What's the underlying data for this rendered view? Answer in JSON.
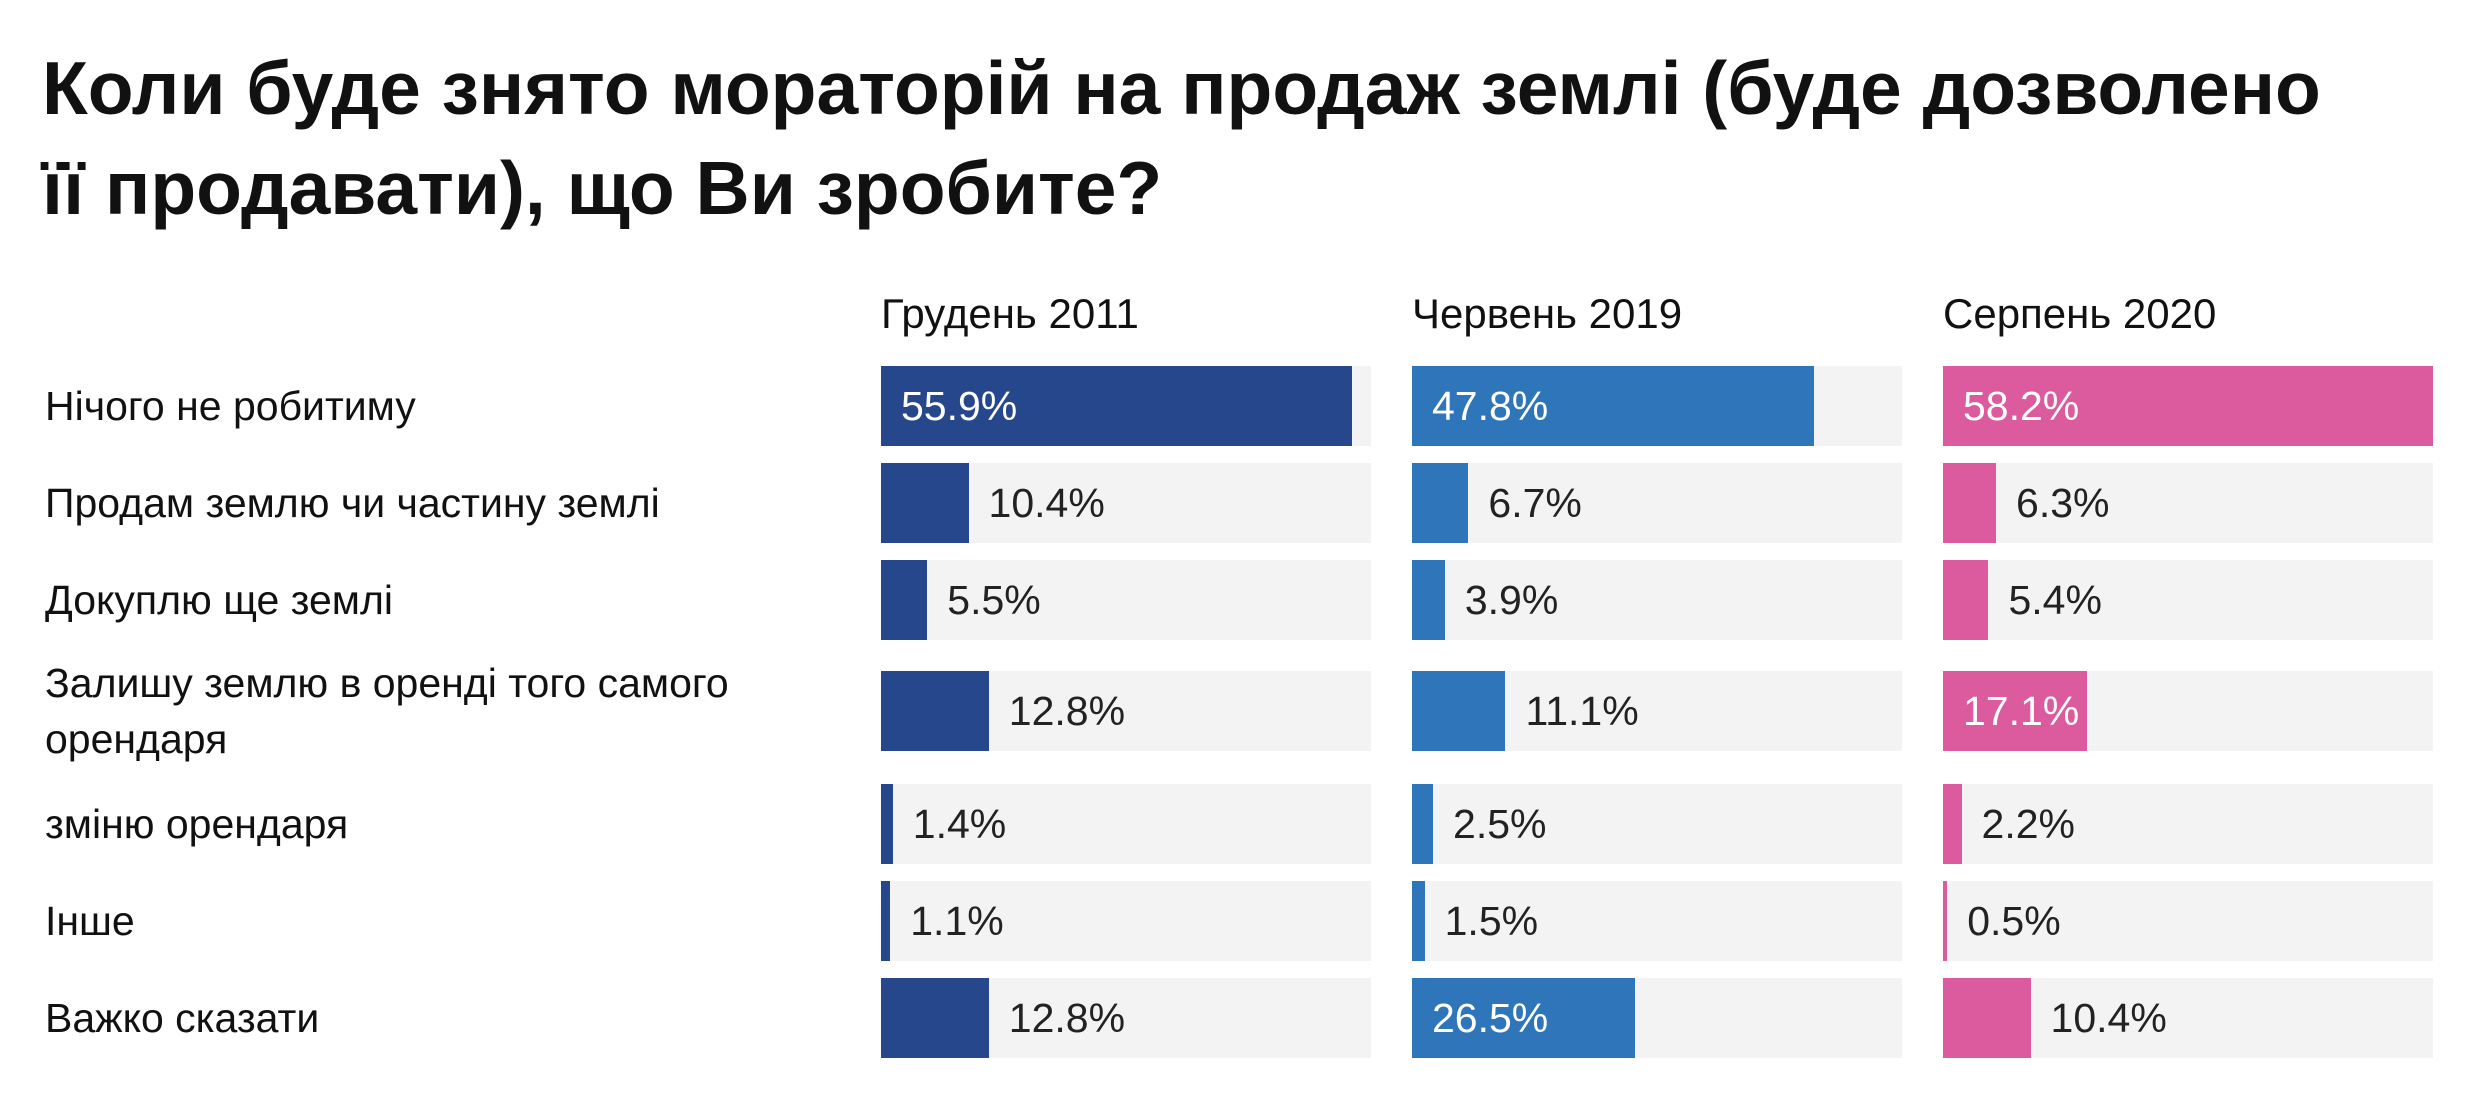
{
  "title": "Коли буде знято мораторій на продаж землі (буде дозволено її продавати), що Ви зробите?",
  "chart_data": {
    "type": "bar",
    "orientation": "horizontal",
    "title": "Коли буде знято мораторій на продаж землі (буде дозволено її продавати), що Ви зробите?",
    "categories": [
      "Нічого не робитиму",
      "Продам землю чи частину землі",
      "Докуплю ще землі",
      "Залишу землю в оренді того самого орендаря",
      "зміню орендаря",
      "Інше",
      "Важко сказати"
    ],
    "series": [
      {
        "name": "Грудень 2011",
        "color": "#27478c",
        "values": [
          55.9,
          10.4,
          5.5,
          12.8,
          1.4,
          1.1,
          12.8
        ],
        "labels": [
          "55.9%",
          "10.4%",
          "5.5%",
          "12.8%",
          "1.4%",
          "1.1%",
          "12.8%"
        ]
      },
      {
        "name": "Червень 2019",
        "color": "#2e75b9",
        "values": [
          47.8,
          6.7,
          3.9,
          11.1,
          2.5,
          1.5,
          26.5
        ],
        "labels": [
          "47.8%",
          "6.7%",
          "3.9%",
          "11.1%",
          "2.5%",
          "1.5%",
          "26.5%"
        ]
      },
      {
        "name": "Серпень 2020",
        "color": "#dc5a9e",
        "values": [
          58.2,
          6.3,
          5.4,
          17.1,
          2.2,
          0.5,
          10.4
        ],
        "labels": [
          "58.2%",
          "6.3%",
          "5.4%",
          "17.1%",
          "2.2%",
          "0.5%",
          "10.4%"
        ]
      }
    ],
    "track_color": "#f3f3f3",
    "grid": false,
    "legend": "column headers"
  }
}
